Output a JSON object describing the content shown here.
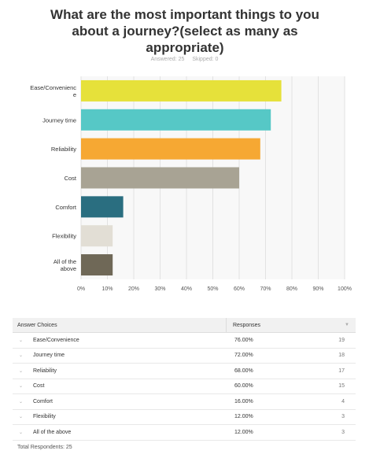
{
  "title": "What are the most important things to you about a journey?(select as many as appropriate)",
  "answered_label": "Answered: 25",
  "skipped_label": "Skipped: 0",
  "chart_data": {
    "type": "bar",
    "orientation": "horizontal",
    "categories": [
      "Ease/Convenience",
      "Journey time",
      "Reliability",
      "Cost",
      "Comfort",
      "Flexibility",
      "All of the above"
    ],
    "values": [
      76,
      72,
      68,
      60,
      16,
      12,
      12
    ],
    "colors": [
      "#e6e13a",
      "#56c8c6",
      "#f6a833",
      "#a8a394",
      "#2a6e80",
      "#e2ded5",
      "#6f6857"
    ],
    "xticks": [
      "0%",
      "10%",
      "20%",
      "30%",
      "40%",
      "50%",
      "60%",
      "70%",
      "80%",
      "90%",
      "100%"
    ],
    "xlim": [
      0,
      100
    ],
    "grid": true
  },
  "table": {
    "header_choices": "Answer Choices",
    "header_responses": "Responses",
    "rows": [
      {
        "choice": "Ease/Convenience",
        "pct": "76.00%",
        "count": "19"
      },
      {
        "choice": "Journey time",
        "pct": "72.00%",
        "count": "18"
      },
      {
        "choice": "Reliability",
        "pct": "68.00%",
        "count": "17"
      },
      {
        "choice": "Cost",
        "pct": "60.00%",
        "count": "15"
      },
      {
        "choice": "Comfort",
        "pct": "16.00%",
        "count": "4"
      },
      {
        "choice": "Flexibility",
        "pct": "12.00%",
        "count": "3"
      },
      {
        "choice": "All of the above",
        "pct": "12.00%",
        "count": "3"
      }
    ],
    "total_label": "Total Respondents: 25"
  }
}
